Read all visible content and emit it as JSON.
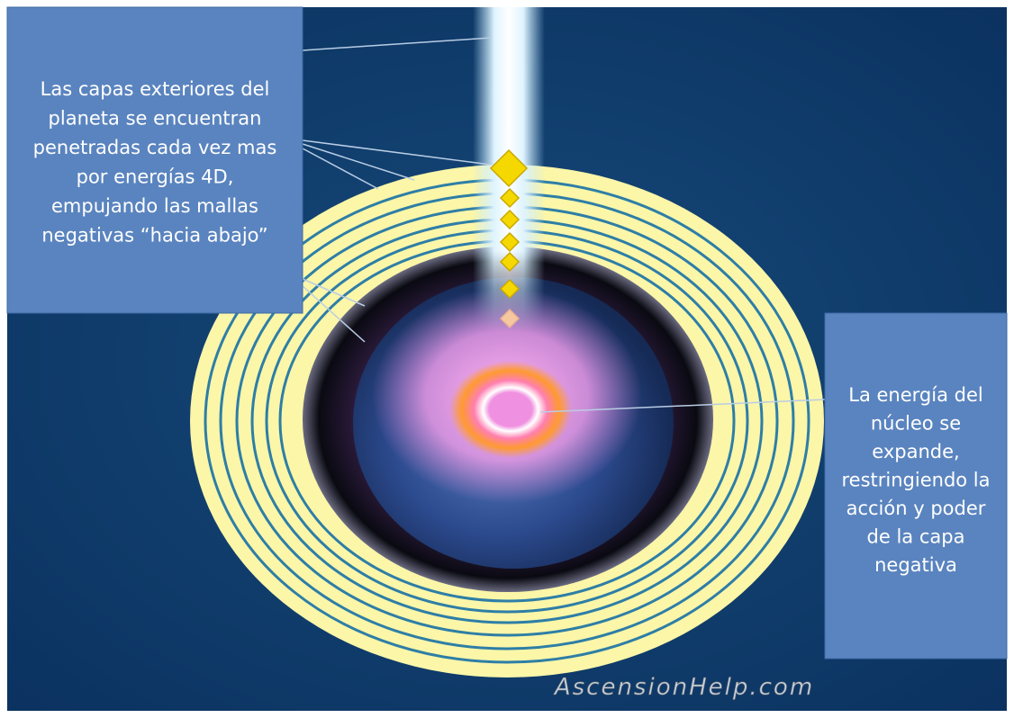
{
  "left_callout": {
    "lines": [
      "Las capas exteriores del",
      "planeta se encuentran",
      "penetradas cada vez mas",
      "por energías 4D,",
      "empujando las mallas",
      "negativas “hacia abajo”"
    ]
  },
  "right_callout": {
    "lines": [
      "La energía del",
      "núcleo se",
      "expande,",
      "restringiendo la",
      "acción y poder",
      "de la capa",
      "negativa"
    ]
  },
  "watermark": "AscensionHelp.com"
}
